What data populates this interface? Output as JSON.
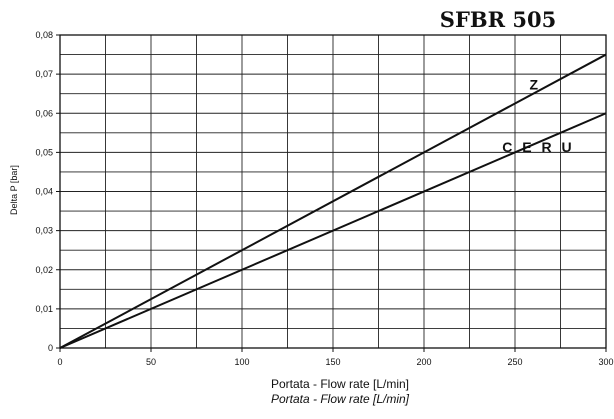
{
  "chart_data": {
    "type": "line",
    "title": "SFBR 505",
    "xlabel": "Portata - Flow rate [L/min]",
    "xlabel_repeat": "Portata - Flow rate [L/min]",
    "ylabel": "Delta P [bar]",
    "xlim": [
      0,
      300
    ],
    "ylim": [
      0,
      0.08
    ],
    "x_ticks": [
      0,
      50,
      100,
      150,
      200,
      250,
      300
    ],
    "x_tick_labels": [
      "0",
      "50",
      "100",
      "150",
      "200",
      "250",
      "300"
    ],
    "y_ticks": [
      0,
      0.01,
      0.02,
      0.03,
      0.04,
      0.05,
      0.06,
      0.07,
      0.08
    ],
    "y_tick_labels": [
      "0",
      "0,01",
      "0,02",
      "0,03",
      "0,04",
      "0,05",
      "0,06",
      "0,07",
      "0,08"
    ],
    "grid": true,
    "grid_x_step": 25,
    "grid_y_step": 0.005,
    "series": [
      {
        "name": "Z",
        "x": [
          0,
          300
        ],
        "values": [
          0,
          0.075
        ]
      },
      {
        "name": "C E R U",
        "x": [
          0,
          300
        ],
        "values": [
          0,
          0.06
        ]
      }
    ]
  },
  "colors": {
    "line": "#111111",
    "grid": "#222222",
    "background": "#ffffff"
  }
}
